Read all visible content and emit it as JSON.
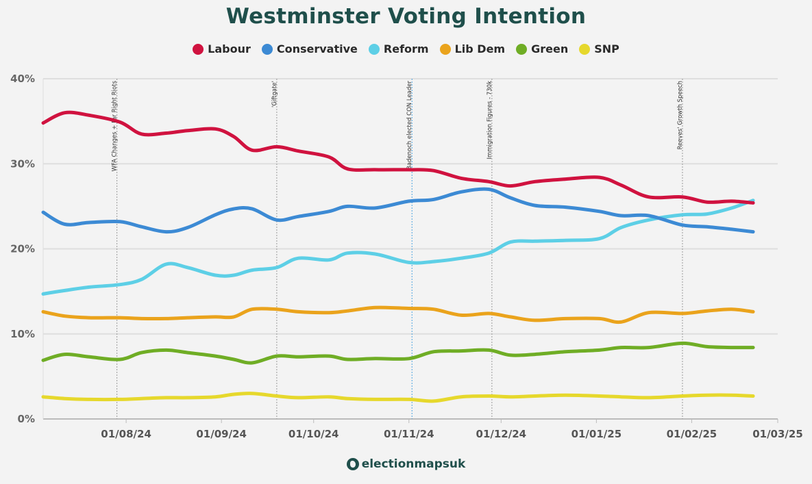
{
  "title": "Westminster Voting Intention",
  "brand": "electionmapsuk",
  "legend": [
    {
      "name": "Labour",
      "color": "#d0123f"
    },
    {
      "name": "Conservative",
      "color": "#3c8ad4"
    },
    {
      "name": "Reform",
      "color": "#5dcfe6"
    },
    {
      "name": "Lib Dem",
      "color": "#eaa31c"
    },
    {
      "name": "Green",
      "color": "#6fad25"
    },
    {
      "name": "SNP",
      "color": "#e6d82c"
    }
  ],
  "chart_data": {
    "type": "line",
    "title": "Westminster Voting Intention",
    "ylim": [
      0,
      40
    ],
    "yticks": [
      "0%",
      "10%",
      "20%",
      "30%",
      "40%"
    ],
    "xlim": [
      "2024-07-05",
      "2025-03-01"
    ],
    "xticks": [
      "01/08/24",
      "01/09/24",
      "01/10/24",
      "01/11/24",
      "01/12/24",
      "01/01/25",
      "01/02/25",
      "01/03/25"
    ],
    "grid": true,
    "legend_position": "top",
    "events": [
      {
        "date": "2024-07-29",
        "label": "WFA Changes + Far Right Riots"
      },
      {
        "date": "2024-09-19",
        "label": "'Giftgate'"
      },
      {
        "date": "2024-11-02",
        "label": "Badenoch elected CON Leader"
      },
      {
        "date": "2024-11-28",
        "label": "Immigration Figures - 730k"
      },
      {
        "date": "2025-01-29",
        "label": "Reeves' Growth Speech"
      }
    ],
    "series": [
      {
        "name": "Labour",
        "color": "#d0123f",
        "x": [
          "2024-07-05",
          "2024-07-12",
          "2024-07-20",
          "2024-07-30",
          "2024-08-06",
          "2024-08-14",
          "2024-08-21",
          "2024-08-30",
          "2024-09-05",
          "2024-09-11",
          "2024-09-19",
          "2024-09-26",
          "2024-10-06",
          "2024-10-12",
          "2024-10-21",
          "2024-11-01",
          "2024-11-09",
          "2024-11-18",
          "2024-11-27",
          "2024-12-04",
          "2024-12-12",
          "2024-12-22",
          "2025-01-02",
          "2025-01-09",
          "2025-01-18",
          "2025-01-29",
          "2025-02-06",
          "2025-02-14",
          "2025-02-21"
        ],
        "values": [
          34.8,
          36.0,
          35.7,
          34.9,
          33.5,
          33.6,
          33.9,
          34.1,
          33.2,
          31.6,
          32.0,
          31.5,
          30.8,
          29.4,
          29.3,
          29.3,
          29.2,
          28.3,
          27.9,
          27.4,
          27.9,
          28.2,
          28.4,
          27.5,
          26.1,
          26.1,
          25.5,
          25.6,
          25.4
        ]
      },
      {
        "name": "Conservative",
        "color": "#3c8ad4",
        "x": [
          "2024-07-05",
          "2024-07-12",
          "2024-07-20",
          "2024-07-30",
          "2024-08-06",
          "2024-08-14",
          "2024-08-21",
          "2024-08-30",
          "2024-09-05",
          "2024-09-11",
          "2024-09-19",
          "2024-09-26",
          "2024-10-06",
          "2024-10-12",
          "2024-10-21",
          "2024-11-01",
          "2024-11-09",
          "2024-11-18",
          "2024-11-27",
          "2024-12-04",
          "2024-12-12",
          "2024-12-22",
          "2025-01-02",
          "2025-01-09",
          "2025-01-18",
          "2025-01-29",
          "2025-02-06",
          "2025-02-14",
          "2025-02-21"
        ],
        "values": [
          24.3,
          22.9,
          23.1,
          23.2,
          22.6,
          22.0,
          22.5,
          24.0,
          24.7,
          24.7,
          23.4,
          23.8,
          24.4,
          25.0,
          24.8,
          25.6,
          25.8,
          26.7,
          27.0,
          26.0,
          25.1,
          24.9,
          24.4,
          23.9,
          23.9,
          22.8,
          22.6,
          22.3,
          22.0
        ]
      },
      {
        "name": "Reform",
        "color": "#5dcfe6",
        "x": [
          "2024-07-05",
          "2024-07-12",
          "2024-07-20",
          "2024-07-30",
          "2024-08-06",
          "2024-08-14",
          "2024-08-21",
          "2024-08-30",
          "2024-09-05",
          "2024-09-11",
          "2024-09-19",
          "2024-09-26",
          "2024-10-06",
          "2024-10-12",
          "2024-10-21",
          "2024-11-01",
          "2024-11-09",
          "2024-11-18",
          "2024-11-27",
          "2024-12-04",
          "2024-12-12",
          "2024-12-22",
          "2025-01-02",
          "2025-01-09",
          "2025-01-18",
          "2025-01-29",
          "2025-02-06",
          "2025-02-14",
          "2025-02-21"
        ],
        "values": [
          14.7,
          15.1,
          15.5,
          15.8,
          16.4,
          18.2,
          17.8,
          16.9,
          16.9,
          17.5,
          17.8,
          18.9,
          18.7,
          19.5,
          19.4,
          18.4,
          18.5,
          18.9,
          19.5,
          20.8,
          20.9,
          21.0,
          21.2,
          22.5,
          23.4,
          24.0,
          24.1,
          24.8,
          25.7
        ]
      },
      {
        "name": "Lib Dem",
        "color": "#eaa31c",
        "x": [
          "2024-07-05",
          "2024-07-12",
          "2024-07-20",
          "2024-07-30",
          "2024-08-06",
          "2024-08-14",
          "2024-08-21",
          "2024-08-30",
          "2024-09-05",
          "2024-09-11",
          "2024-09-19",
          "2024-09-26",
          "2024-10-06",
          "2024-10-12",
          "2024-10-21",
          "2024-11-01",
          "2024-11-09",
          "2024-11-18",
          "2024-11-27",
          "2024-12-04",
          "2024-12-12",
          "2024-12-22",
          "2025-01-02",
          "2025-01-09",
          "2025-01-18",
          "2025-01-29",
          "2025-02-06",
          "2025-02-14",
          "2025-02-21"
        ],
        "values": [
          12.6,
          12.1,
          11.9,
          11.9,
          11.8,
          11.8,
          11.9,
          12.0,
          12.0,
          12.9,
          12.9,
          12.6,
          12.5,
          12.7,
          13.1,
          13.0,
          12.9,
          12.2,
          12.4,
          12.0,
          11.6,
          11.8,
          11.8,
          11.4,
          12.5,
          12.4,
          12.7,
          12.9,
          12.6
        ]
      },
      {
        "name": "Green",
        "color": "#6fad25",
        "x": [
          "2024-07-05",
          "2024-07-12",
          "2024-07-20",
          "2024-07-30",
          "2024-08-06",
          "2024-08-14",
          "2024-08-21",
          "2024-08-30",
          "2024-09-05",
          "2024-09-11",
          "2024-09-19",
          "2024-09-26",
          "2024-10-06",
          "2024-10-12",
          "2024-10-21",
          "2024-11-01",
          "2024-11-09",
          "2024-11-18",
          "2024-11-27",
          "2024-12-04",
          "2024-12-12",
          "2024-12-22",
          "2025-01-02",
          "2025-01-09",
          "2025-01-18",
          "2025-01-29",
          "2025-02-06",
          "2025-02-14",
          "2025-02-21"
        ],
        "values": [
          6.9,
          7.6,
          7.3,
          7.0,
          7.8,
          8.1,
          7.8,
          7.4,
          7.0,
          6.6,
          7.4,
          7.3,
          7.4,
          7.0,
          7.1,
          7.1,
          7.9,
          8.0,
          8.1,
          7.5,
          7.6,
          7.9,
          8.1,
          8.4,
          8.4,
          8.9,
          8.5,
          8.4,
          8.4
        ]
      },
      {
        "name": "SNP",
        "color": "#e6d82c",
        "x": [
          "2024-07-05",
          "2024-07-12",
          "2024-07-20",
          "2024-07-30",
          "2024-08-06",
          "2024-08-14",
          "2024-08-21",
          "2024-08-30",
          "2024-09-05",
          "2024-09-11",
          "2024-09-19",
          "2024-09-26",
          "2024-10-06",
          "2024-10-12",
          "2024-10-21",
          "2024-11-01",
          "2024-11-09",
          "2024-11-18",
          "2024-11-27",
          "2024-12-04",
          "2024-12-12",
          "2024-12-22",
          "2025-01-02",
          "2025-01-09",
          "2025-01-18",
          "2025-01-29",
          "2025-02-06",
          "2025-02-14",
          "2025-02-21"
        ],
        "values": [
          2.6,
          2.4,
          2.3,
          2.3,
          2.4,
          2.5,
          2.5,
          2.6,
          2.9,
          3.0,
          2.7,
          2.5,
          2.6,
          2.4,
          2.3,
          2.3,
          2.1,
          2.6,
          2.7,
          2.6,
          2.7,
          2.8,
          2.7,
          2.6,
          2.5,
          2.7,
          2.8,
          2.8,
          2.7
        ]
      }
    ]
  }
}
